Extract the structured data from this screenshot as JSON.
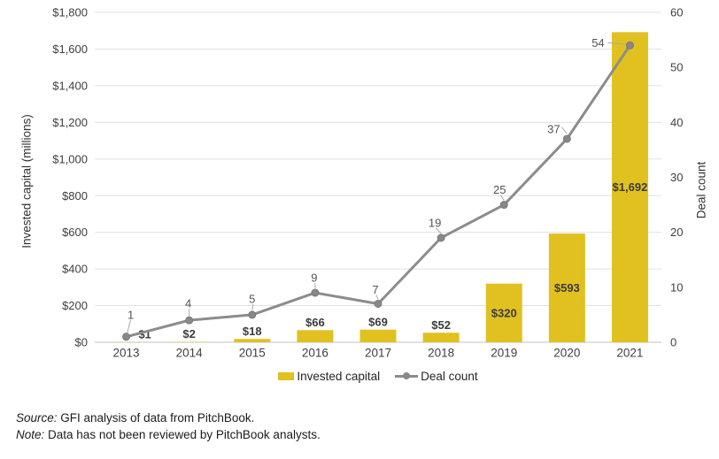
{
  "chart_data": {
    "type": "bar+line combo",
    "title": "",
    "categories": [
      "2013",
      "2014",
      "2015",
      "2016",
      "2017",
      "2018",
      "2019",
      "2020",
      "2021"
    ],
    "series": [
      {
        "name": "Invested capital",
        "type": "bar",
        "axis": "left",
        "values": [
          1,
          2,
          18,
          66,
          69,
          52,
          320,
          593,
          1692
        ],
        "labels": [
          "$1",
          "$2",
          "$18",
          "$66",
          "$69",
          "$52",
          "$320",
          "$593",
          "$1,692"
        ],
        "color": "#E0C120"
      },
      {
        "name": "Deal count",
        "type": "line",
        "axis": "right",
        "values": [
          1,
          4,
          5,
          9,
          7,
          19,
          25,
          37,
          54
        ],
        "color": "#8C8C8C"
      }
    ],
    "left_axis": {
      "title": "Invested capital (millions)",
      "min": 0,
      "max": 1800,
      "step": 200,
      "tick_labels": [
        "$0",
        "$200",
        "$400",
        "$600",
        "$800",
        "$1,000",
        "$1,200",
        "$1,400",
        "$1,600",
        "$1,800"
      ]
    },
    "right_axis": {
      "title": "Deal count",
      "min": 0,
      "max": 60,
      "step": 10,
      "tick_labels": [
        "0",
        "10",
        "20",
        "30",
        "40",
        "50",
        "60"
      ]
    },
    "grid": true,
    "legend_position": "bottom"
  },
  "legend": {
    "invested_capital": "Invested capital",
    "deal_count": "Deal count"
  },
  "footer": {
    "source_label": "Source:",
    "source_text": " GFI analysis of data from PitchBook.",
    "note_label": "Note:",
    "note_text": " Data has not been reviewed by PitchBook analysts."
  },
  "colors": {
    "bar": "#E0C120",
    "line": "#8C8C8C",
    "marker": "#888888",
    "marker_edge": "#7A7A7A",
    "grid": "#E1E1E1",
    "baseline": "#C2C2C2",
    "leader": "#A9A9A9",
    "tick_label": "#3F3F3F",
    "bar_label": "#3B3B3B",
    "deal_label": "#545454"
  }
}
